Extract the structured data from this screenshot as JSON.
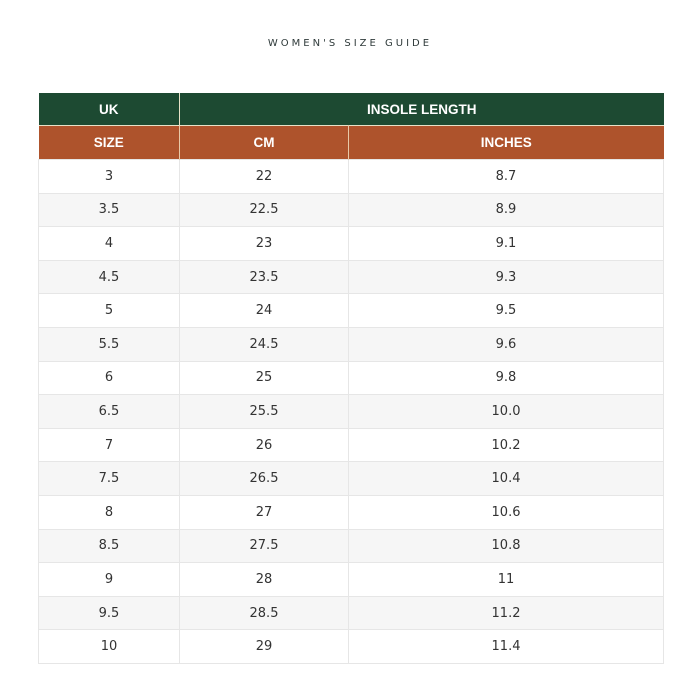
{
  "title": "WOMEN'S SIZE GUIDE",
  "header": {
    "uk": "UK",
    "insole_length": "INSOLE LENGTH",
    "size": "SIZE",
    "cm": "CM",
    "inches": "INCHES"
  },
  "colors": {
    "header_top": "#1d4a32",
    "header_sub": "#ae532c"
  },
  "rows": [
    [
      "3",
      "22",
      "8.7"
    ],
    [
      "3.5",
      "22.5",
      "8.9"
    ],
    [
      "4",
      "23",
      "9.1"
    ],
    [
      "4.5",
      "23.5",
      "9.3"
    ],
    [
      "5",
      "24",
      "9.5"
    ],
    [
      "5.5",
      "24.5",
      "9.6"
    ],
    [
      "6",
      "25",
      "9.8"
    ],
    [
      "6.5",
      "25.5",
      "10.0"
    ],
    [
      "7",
      "26",
      "10.2"
    ],
    [
      "7.5",
      "26.5",
      "10.4"
    ],
    [
      "8",
      "27",
      "10.6"
    ],
    [
      "8.5",
      "27.5",
      "10.8"
    ],
    [
      "9",
      "28",
      "11"
    ],
    [
      "9.5",
      "28.5",
      "11.2"
    ],
    [
      "10",
      "29",
      "11.4"
    ]
  ]
}
